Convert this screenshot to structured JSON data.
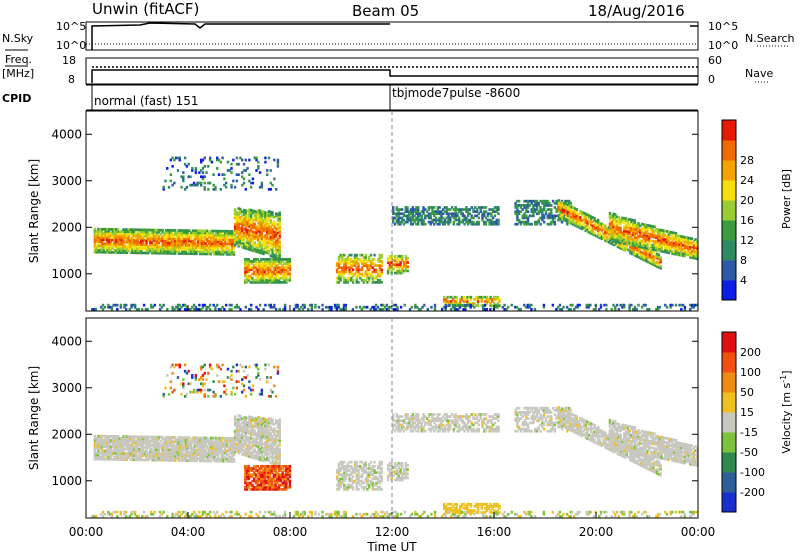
{
  "header": {
    "station": "Unwin (fitACF)",
    "beam": "Beam 05",
    "date": "18/Aug/2016"
  },
  "labels": {
    "nsky": "N.Sky",
    "nsearch": "N.Search",
    "freq": "Freq.",
    "freq_unit": "[MHz]",
    "nave": "Nave",
    "cpid": "CPID",
    "power": "Power [dB]",
    "velocity_prefix": "Velocity [m s",
    "velocity_exp": "-1",
    "velocity_suffix": "]"
  },
  "noise_panel": {
    "left_ticks": [
      "10^5",
      "10^0"
    ],
    "right_ticks": [
      "10^5",
      "10^0"
    ]
  },
  "freq_panel": {
    "left_ticks": [
      "18",
      "8"
    ],
    "right_ticks": [
      "60",
      "0"
    ]
  },
  "cpid_panel": {
    "segments": [
      {
        "start": 0,
        "end": 12,
        "label": "normal (fast) 151"
      },
      {
        "start": 12,
        "end": 24,
        "label": "tbjmode7pulse -8600"
      }
    ]
  },
  "chart_data": [
    {
      "type": "heatmap",
      "name": "power",
      "ylabel": "Slant Range [km]",
      "ylim": [
        200,
        4500
      ],
      "yticks": [
        1000,
        2000,
        3000,
        4000
      ],
      "xlim": [
        0,
        24
      ],
      "colorbar": {
        "label": "Power [dB]",
        "ticks": [
          "4",
          "8",
          "12",
          "16",
          "20",
          "24",
          "28"
        ],
        "colors": [
          "#0a1ee6",
          "#2c59a8",
          "#2e8a62",
          "#3a9c3f",
          "#9acd32",
          "#f4e00c",
          "#f5a300",
          "#f06a00",
          "#e61a00"
        ]
      }
    },
    {
      "type": "heatmap",
      "name": "velocity",
      "ylabel": "Slant Range [km]",
      "ylim": [
        200,
        4500
      ],
      "yticks": [
        1000,
        2000,
        3000,
        4000
      ],
      "xlim": [
        0,
        24
      ],
      "xlabel": "Time UT",
      "xticks": [
        "00:00",
        "04:00",
        "08:00",
        "12:00",
        "16:00",
        "20:00",
        "00:00"
      ],
      "colorbar": {
        "label": "Velocity [m s-1]",
        "ticks": [
          "200",
          "100",
          "50",
          "15",
          "-15",
          "-50",
          "-100",
          "-200"
        ],
        "colors": [
          "#1a2fcf",
          "#2d5f9c",
          "#2e8a4a",
          "#7cc23a",
          "#c8c8c0",
          "#f0c020",
          "#f08a10",
          "#f05010",
          "#e01010"
        ]
      }
    }
  ]
}
